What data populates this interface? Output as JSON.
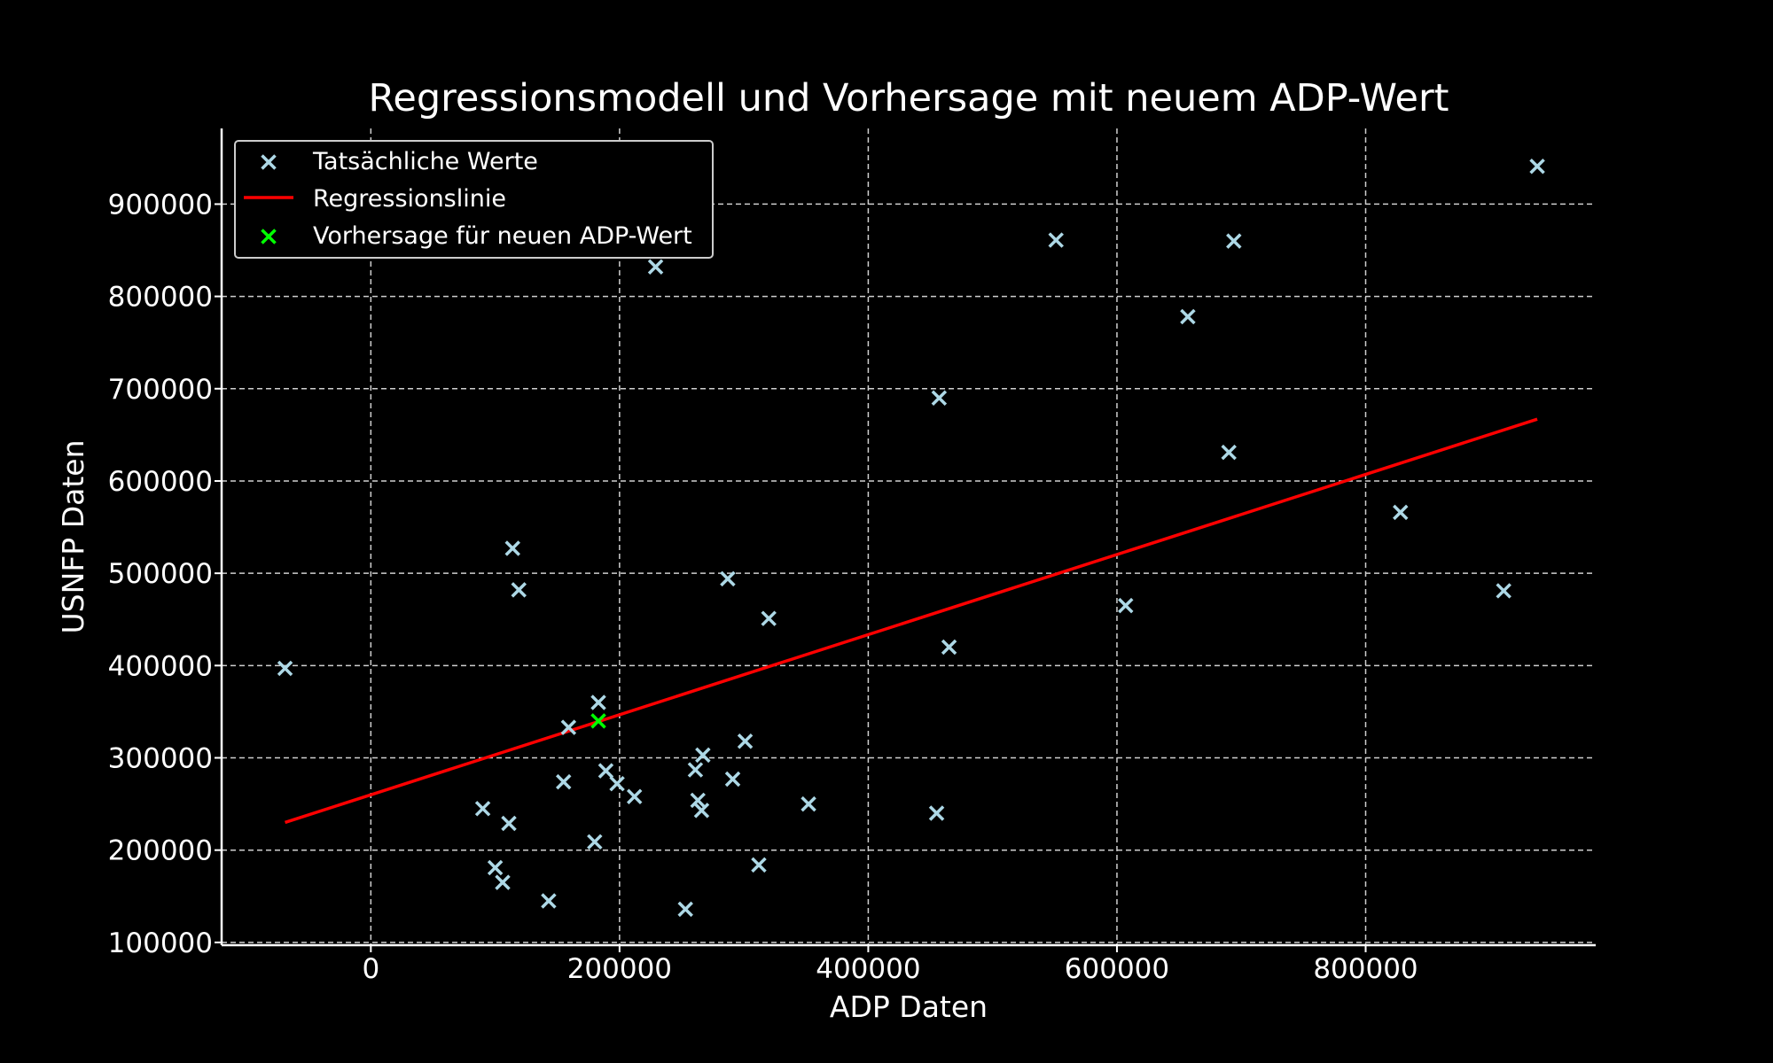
{
  "chart_data": {
    "type": "scatter",
    "title": "Regressionsmodell und Vorhersage mit neuem ADP-Wert",
    "xlabel": "ADP Daten",
    "ylabel": "USNFP Daten",
    "xlim": [
      -120000,
      985000
    ],
    "ylim": [
      97000,
      982000
    ],
    "xticks": [
      0,
      200000,
      400000,
      600000,
      800000
    ],
    "xtick_labels": [
      "0",
      "200000",
      "400000",
      "600000",
      "800000"
    ],
    "yticks": [
      100000,
      200000,
      300000,
      400000,
      500000,
      600000,
      700000,
      800000,
      900000
    ],
    "ytick_labels": [
      "100000",
      "200000",
      "300000",
      "400000",
      "500000",
      "600000",
      "700000",
      "800000",
      "900000"
    ],
    "grid": true,
    "legend_position": "top-left",
    "series": [
      {
        "name": "Tatsächliche Werte",
        "kind": "scatter",
        "marker": "x",
        "color": "#add8e6",
        "points": [
          [
            -69000,
            397000
          ],
          [
            90000,
            245000
          ],
          [
            100000,
            181000
          ],
          [
            106000,
            165000
          ],
          [
            111000,
            229000
          ],
          [
            114000,
            527000
          ],
          [
            119000,
            482000
          ],
          [
            143000,
            145000
          ],
          [
            155000,
            274000
          ],
          [
            159000,
            333000
          ],
          [
            180000,
            209000
          ],
          [
            183000,
            360000
          ],
          [
            189000,
            286000
          ],
          [
            198000,
            272000
          ],
          [
            212000,
            258000
          ],
          [
            229000,
            832000
          ],
          [
            253000,
            136000
          ],
          [
            261000,
            287000
          ],
          [
            263000,
            254000
          ],
          [
            266000,
            243000
          ],
          [
            267000,
            303000
          ],
          [
            287000,
            494000
          ],
          [
            291000,
            277000
          ],
          [
            301000,
            318000
          ],
          [
            312000,
            184000
          ],
          [
            320000,
            451000
          ],
          [
            352000,
            250000
          ],
          [
            455000,
            240000
          ],
          [
            457000,
            690000
          ],
          [
            465000,
            420000
          ],
          [
            551000,
            861000
          ],
          [
            607000,
            465000
          ],
          [
            657000,
            778000
          ],
          [
            690000,
            631000
          ],
          [
            694000,
            860000
          ],
          [
            828000,
            566000
          ],
          [
            911000,
            481000
          ],
          [
            938000,
            941000
          ]
        ]
      },
      {
        "name": "Regressionslinie",
        "kind": "line",
        "color": "#ff0000",
        "points": [
          [
            -69000,
            230000
          ],
          [
            938000,
            667000
          ]
        ]
      },
      {
        "name": "Vorhersage für neuen ADP-Wert",
        "kind": "scatter",
        "marker": "x",
        "color": "#00ff00",
        "points": [
          [
            183000,
            340000
          ]
        ]
      }
    ]
  }
}
